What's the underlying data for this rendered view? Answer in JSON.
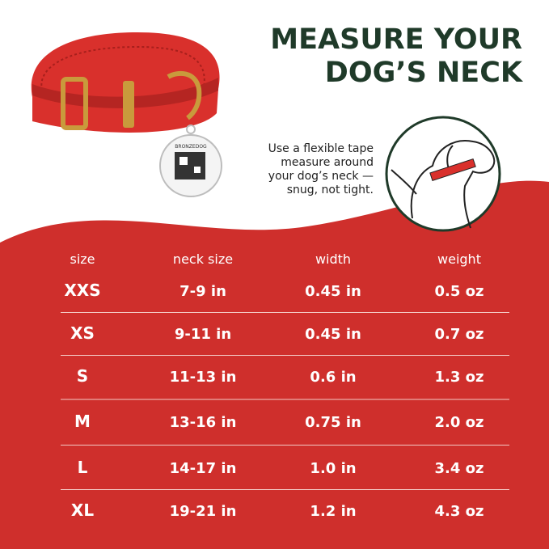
{
  "header": {
    "title_lines": [
      "MEASURE YOUR",
      "DOG’S  NECK"
    ]
  },
  "instruction": {
    "lines": [
      "Use a flexible tape",
      "measure around",
      "your dog’s neck —",
      "snug, not tight."
    ]
  },
  "tag": {
    "brand": "BRONZEDOG"
  },
  "table": {
    "header": [
      "size",
      "neck size",
      "width",
      "weight"
    ],
    "rows": [
      [
        "XXS",
        "7-9 in",
        "0.45 in",
        "0.5 oz"
      ],
      [
        "XS",
        "9-11 in",
        "0.45 in",
        "0.7 oz"
      ],
      [
        "S",
        "11-13 in",
        "0.6 in",
        "1.3 oz"
      ],
      [
        "M",
        "13-16 in",
        "0.75 in",
        "2.0 oz"
      ],
      [
        "L",
        "14-17 in",
        "1.0 in",
        "3.4 oz"
      ],
      [
        "XL",
        "19-21 in",
        "1.2 in",
        "4.3 oz"
      ]
    ]
  }
}
